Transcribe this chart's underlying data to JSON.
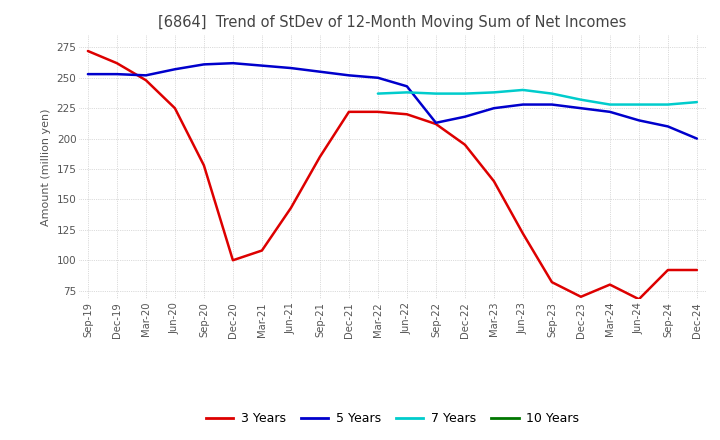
{
  "title": "[6864]  Trend of StDev of 12-Month Moving Sum of Net Incomes",
  "ylabel": "Amount (million yen)",
  "ylim": [
    68,
    285
  ],
  "yticks": [
    75,
    100,
    125,
    150,
    175,
    200,
    225,
    250,
    275
  ],
  "legend_labels": [
    "3 Years",
    "5 Years",
    "7 Years",
    "10 Years"
  ],
  "legend_colors": [
    "#dd0000",
    "#0000cc",
    "#00cccc",
    "#007700"
  ],
  "x_labels": [
    "Sep-19",
    "Dec-19",
    "Mar-20",
    "Jun-20",
    "Sep-20",
    "Dec-20",
    "Mar-21",
    "Jun-21",
    "Sep-21",
    "Dec-21",
    "Mar-22",
    "Jun-22",
    "Sep-22",
    "Dec-22",
    "Mar-23",
    "Jun-23",
    "Sep-23",
    "Dec-23",
    "Mar-24",
    "Jun-24",
    "Sep-24",
    "Dec-24"
  ],
  "series_3y": [
    272,
    262,
    248,
    225,
    178,
    100,
    108,
    143,
    185,
    222,
    222,
    220,
    212,
    195,
    165,
    122,
    82,
    70,
    80,
    68,
    92,
    92
  ],
  "series_5y": [
    253,
    253,
    252,
    257,
    261,
    262,
    260,
    258,
    255,
    252,
    250,
    243,
    213,
    218,
    225,
    228,
    228,
    225,
    222,
    215,
    210,
    200
  ],
  "series_7y": [
    null,
    null,
    null,
    null,
    null,
    null,
    null,
    null,
    null,
    null,
    237,
    238,
    237,
    237,
    238,
    240,
    237,
    232,
    228,
    228,
    228,
    230
  ],
  "series_10y": [
    null,
    null,
    null,
    null,
    null,
    null,
    null,
    null,
    null,
    null,
    null,
    null,
    null,
    null,
    null,
    null,
    null,
    null,
    null,
    null,
    null,
    null
  ],
  "background_color": "#ffffff",
  "grid_color": "#bbbbbb",
  "title_color": "#444444"
}
